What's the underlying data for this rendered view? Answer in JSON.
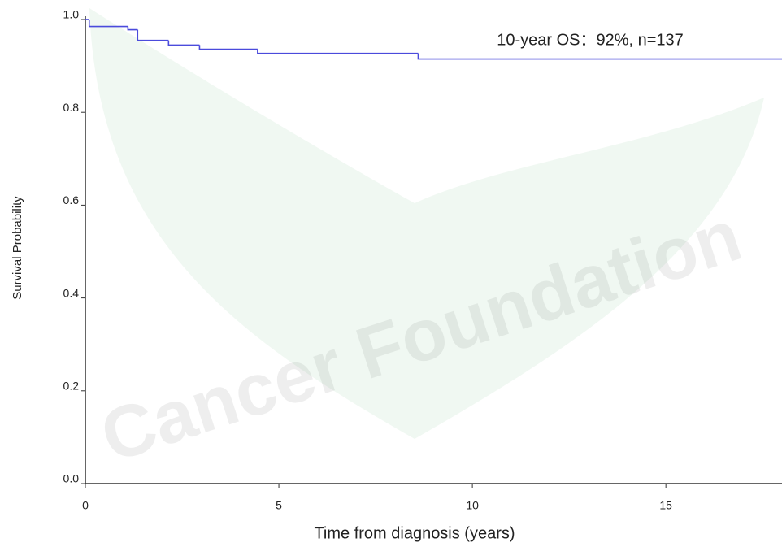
{
  "chart_data": {
    "type": "step",
    "annotation": "10-year OS：92%, n=137",
    "watermark": "Cancer Foundation",
    "x_label": "Time from diagnosis (years)",
    "y_label": "Survival Probability",
    "x": [
      0,
      0.1,
      1.1,
      1.35,
      2.15,
      2.95,
      4.45,
      8.6,
      18
    ],
    "values": [
      1.0,
      0.985,
      0.978,
      0.955,
      0.945,
      0.936,
      0.927,
      0.915,
      0.915
    ],
    "color": "#4b4bdc",
    "xlim": [
      0,
      18
    ],
    "ylim": [
      0,
      1
    ],
    "xticks": [
      0,
      5,
      10,
      15
    ],
    "yticks": [
      {
        "value": 0,
        "label": "0.0"
      },
      0.2,
      0.4,
      0.6,
      0.8,
      {
        "value": 1,
        "label": "1.0"
      }
    ]
  }
}
